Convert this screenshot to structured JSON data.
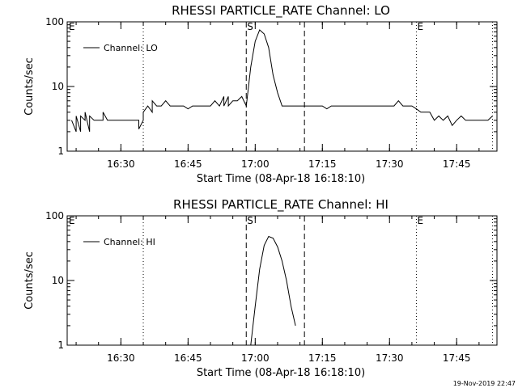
{
  "footer": {
    "timestamp": "19-Nov-2019 22:47"
  },
  "chart_data": [
    {
      "type": "line",
      "title": "RHESSI PARTICLE_RATE Channel: LO",
      "xlabel": "Start Time (08-Apr-18 16:18:10)",
      "ylabel": "Counts/sec",
      "yscale": "log",
      "ylim": [
        1,
        100
      ],
      "xlim_minutes": [
        16.3,
        17.9
      ],
      "x_tick_labels": [
        "16:30",
        "16:45",
        "17:00",
        "17:15",
        "17:30",
        "17:45"
      ],
      "y_tick_labels": [
        "1",
        "10",
        "100"
      ],
      "grid": false,
      "legend": {
        "position": "top-left"
      },
      "markers": [
        {
          "label": "E",
          "time": "16:18",
          "style": "dotted"
        },
        {
          "label": "",
          "time": "16:35",
          "style": "dotted"
        },
        {
          "label": "S",
          "time": "16:58",
          "style": "dashed"
        },
        {
          "label": "",
          "time": "17:11",
          "style": "dashed"
        },
        {
          "label": "E",
          "time": "17:36",
          "style": "dotted"
        },
        {
          "label": "",
          "time": "17:53",
          "style": "dotted"
        }
      ],
      "series": [
        {
          "name": "Channel: LO",
          "x": [
            "16:19",
            "16:20",
            "16:20",
            "16:21",
            "16:21",
            "16:22",
            "16:22",
            "16:23",
            "16:23",
            "16:24",
            "16:25",
            "16:26",
            "16:26",
            "16:27",
            "16:28",
            "16:30",
            "16:31",
            "16:32",
            "16:33",
            "16:34",
            "16:34",
            "16:35",
            "16:35",
            "16:36",
            "16:37",
            "16:37",
            "16:38",
            "16:39",
            "16:40",
            "16:41",
            "16:42",
            "16:43",
            "16:44",
            "16:45",
            "16:46",
            "16:47",
            "16:48",
            "16:49",
            "16:50",
            "16:51",
            "16:52",
            "16:53",
            "16:53",
            "16:54",
            "16:54",
            "16:55",
            "16:56",
            "16:57",
            "16:58",
            "16:59",
            "17:00",
            "17:01",
            "17:02",
            "17:03",
            "17:04",
            "17:05",
            "17:06",
            "17:07",
            "17:08",
            "17:09",
            "17:10",
            "17:11",
            "17:12",
            "17:13",
            "17:14",
            "17:15",
            "17:16",
            "17:17",
            "17:18",
            "17:19",
            "17:20",
            "17:21",
            "17:22",
            "17:23",
            "17:24",
            "17:25",
            "17:26",
            "17:27",
            "17:28",
            "17:29",
            "17:30",
            "17:31",
            "17:32",
            "17:33",
            "17:34",
            "17:35",
            "17:36",
            "17:37",
            "17:38",
            "17:39",
            "17:40",
            "17:41",
            "17:42",
            "17:43",
            "17:44",
            "17:45",
            "17:46",
            "17:47",
            "17:48",
            "17:49",
            "17:50",
            "17:51",
            "17:52",
            "17:53"
          ],
          "y": [
            3,
            2,
            3.5,
            2,
            3.5,
            3,
            4,
            2,
            3.5,
            3,
            3,
            3,
            4,
            3,
            3,
            3,
            3,
            3,
            3,
            3,
            2.2,
            3,
            4,
            5,
            4,
            6,
            5,
            5,
            6,
            5,
            5,
            5,
            5,
            4.5,
            5,
            5,
            5,
            5,
            5,
            6,
            5,
            7,
            5,
            7,
            5,
            6,
            6,
            7,
            5,
            20,
            50,
            75,
            65,
            40,
            15,
            8,
            5,
            5,
            5,
            5,
            5,
            5,
            5,
            5,
            5,
            5,
            4.5,
            5,
            5,
            5,
            5,
            5,
            5,
            5,
            5,
            5,
            5,
            5,
            5,
            5,
            5,
            5,
            6,
            5,
            5,
            5,
            4.5,
            4,
            4,
            4,
            3,
            3.5,
            3,
            3.5,
            2.5,
            3,
            3.5,
            3,
            3,
            3,
            3,
            3,
            3,
            3.5
          ]
        }
      ]
    },
    {
      "type": "line",
      "title": "RHESSI PARTICLE_RATE Channel: HI",
      "xlabel": "Start Time (08-Apr-18 16:18:10)",
      "ylabel": "Counts/sec",
      "yscale": "log",
      "ylim": [
        1,
        100
      ],
      "x_tick_labels": [
        "16:30",
        "16:45",
        "17:00",
        "17:15",
        "17:30",
        "17:45"
      ],
      "y_tick_labels": [
        "1",
        "10",
        "100"
      ],
      "grid": false,
      "legend": {
        "position": "top-left"
      },
      "markers": [
        {
          "label": "E",
          "time": "16:18",
          "style": "dotted"
        },
        {
          "label": "",
          "time": "16:35",
          "style": "dotted"
        },
        {
          "label": "S",
          "time": "16:58",
          "style": "dashed"
        },
        {
          "label": "",
          "time": "17:11",
          "style": "dashed"
        },
        {
          "label": "E",
          "time": "17:36",
          "style": "dotted"
        },
        {
          "label": "",
          "time": "17:53",
          "style": "dotted"
        }
      ],
      "series": [
        {
          "name": "Channel: HI",
          "x": [
            "16:59",
            "17:00",
            "17:01",
            "17:02",
            "17:03",
            "17:04",
            "17:05",
            "17:06",
            "17:07",
            "17:08",
            "17:09"
          ],
          "y": [
            1,
            4,
            15,
            35,
            48,
            45,
            33,
            20,
            10,
            4,
            2
          ]
        }
      ]
    }
  ]
}
